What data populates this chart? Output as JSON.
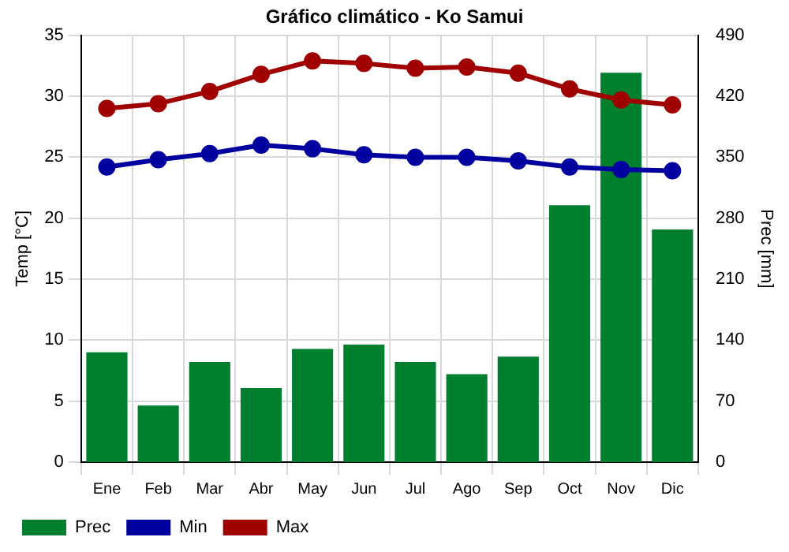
{
  "chart_data": {
    "type": "bar",
    "title": "Gráfico climático - Ko Samui",
    "ylabel": "Temp [°C]",
    "y2label": "Prec [mm]",
    "categories": [
      "Ene",
      "Feb",
      "Mar",
      "Abr",
      "May",
      "Jun",
      "Jul",
      "Ago",
      "Sep",
      "Oct",
      "Nov",
      "Dic"
    ],
    "series": [
      {
        "name": "Prec",
        "axis": "y2",
        "color": "#007f2f",
        "values": [
          126,
          65,
          115,
          85,
          130,
          135,
          115,
          101,
          121,
          295,
          447,
          267
        ]
      },
      {
        "name": "Min",
        "type": "line",
        "color": "#0000a0",
        "values": [
          24.2,
          24.8,
          25.3,
          26.0,
          25.7,
          25.2,
          25.0,
          25.0,
          24.7,
          24.2,
          24.0,
          23.9
        ]
      },
      {
        "name": "Max",
        "type": "line",
        "color": "#a00000",
        "values": [
          29.0,
          29.4,
          30.4,
          31.8,
          32.9,
          32.7,
          32.3,
          32.4,
          31.9,
          30.6,
          29.7,
          29.3
        ]
      }
    ],
    "ylim": [
      0,
      35
    ],
    "yticks": [
      0,
      5,
      10,
      15,
      20,
      25,
      30,
      35
    ],
    "y2lim": [
      0,
      490
    ],
    "y2ticks": [
      0,
      70,
      140,
      210,
      280,
      350,
      420,
      490
    ],
    "grid": true,
    "legend": "bottom left",
    "marker": "circle",
    "line_style": "solid"
  }
}
